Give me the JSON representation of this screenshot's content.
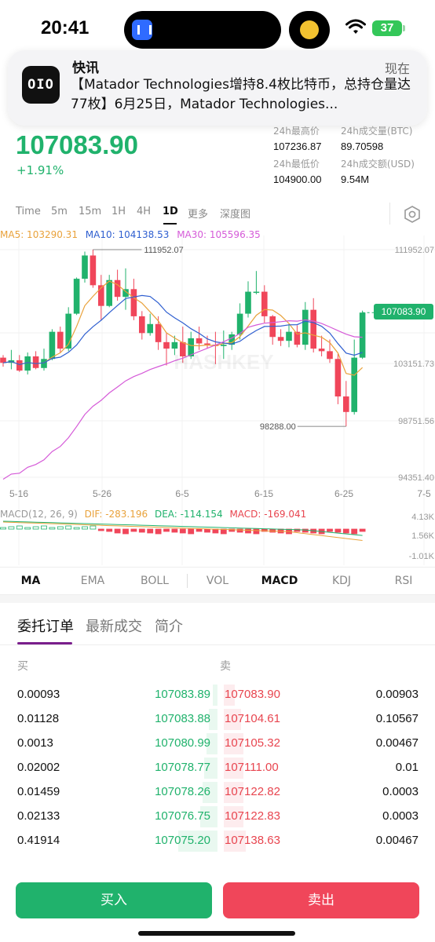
{
  "status": {
    "time": "20:41",
    "battery": "37"
  },
  "notification": {
    "app": "快讯",
    "icon_text": "OIO",
    "time": "现在",
    "body": "【Matador Technologies增持8.4枚比特币，总持仓量达77枚】6月25日，Matador Technologies..."
  },
  "ticker": {
    "price": "107083.90",
    "change": "+1.91%",
    "high_label": "24h最高价",
    "high": "107236.87",
    "low_label": "24h最低价",
    "low": "104900.00",
    "vol_label": "24h成交量(BTC)",
    "vol": "89.70598",
    "turnover_label": "24h成交额(USD)",
    "turnover": "9.54M"
  },
  "timeframes": [
    "Time",
    "5m",
    "15m",
    "1H",
    "4H",
    "1D",
    "更多",
    "深度图"
  ],
  "active_timeframe": "1D",
  "ma_legend": {
    "ma5": "MA5: 103290.31",
    "ma10": "MA10: 104138.53",
    "ma30": "MA30: 105596.35"
  },
  "macd_legend": {
    "params": "MACD(12, 26, 9)",
    "dif": "DIF: -283.196",
    "dea": "DEA: -114.154",
    "macd": "MACD: -169.041"
  },
  "colors": {
    "up": "#20b26c",
    "down": "#f0465a",
    "ma5": "#e9a23b",
    "ma10": "#2f5fd0",
    "ma30": "#d55ad8"
  },
  "chart_data": {
    "type": "candlestick",
    "y_axis_labels": [
      "111952.07",
      "103151.73",
      "98751.56",
      "94351.40"
    ],
    "x_axis_labels": [
      "5-16",
      "5-26",
      "6-5",
      "6-15",
      "6-25",
      "7-5"
    ],
    "last_price": "107083.90",
    "max_annotation": "111952.07",
    "min_annotation": "98288.00",
    "macd_axis_labels": [
      "4.13K",
      "1.56K",
      "-1.01K"
    ],
    "ylim": [
      94351.4,
      111952.07
    ],
    "candles": [
      [
        103600,
        103800,
        102900,
        103200
      ],
      [
        103200,
        104200,
        102700,
        103400
      ],
      [
        103400,
        103800,
        102500,
        102600
      ],
      [
        102600,
        104000,
        102300,
        103700
      ],
      [
        103700,
        104100,
        102700,
        102800
      ],
      [
        102800,
        104300,
        102600,
        103500
      ],
      [
        103500,
        105800,
        103400,
        105600
      ],
      [
        105600,
        106000,
        104000,
        104300
      ],
      [
        104300,
        107500,
        104100,
        107000
      ],
      [
        107000,
        109800,
        106900,
        109700
      ],
      [
        109700,
        111800,
        109400,
        111500
      ],
      [
        111500,
        111952,
        109000,
        109200
      ],
      [
        109200,
        110000,
        106500,
        107600
      ],
      [
        107600,
        110000,
        107500,
        109600
      ],
      [
        109600,
        110400,
        108000,
        108300
      ],
      [
        108300,
        110500,
        107300,
        108900
      ],
      [
        108900,
        109700,
        106500,
        106800
      ],
      [
        106800,
        107200,
        105000,
        105500
      ],
      [
        105500,
        107000,
        105300,
        106200
      ],
      [
        106200,
        106800,
        104200,
        104800
      ],
      [
        104800,
        105500,
        103000,
        104300
      ],
      [
        104300,
        105300,
        103800,
        104800
      ],
      [
        104800,
        106000,
        103200,
        103700
      ],
      [
        103700,
        105600,
        103500,
        105100
      ],
      [
        105100,
        106000,
        104200,
        104700
      ],
      [
        104700,
        105300,
        104300,
        104600
      ],
      [
        104600,
        105600,
        103100,
        104500
      ],
      [
        104500,
        105700,
        103500,
        104600
      ],
      [
        104600,
        105600,
        104200,
        105400
      ],
      [
        105400,
        107800,
        105000,
        107000
      ],
      [
        107000,
        109500,
        106700,
        108700
      ],
      [
        108700,
        110300,
        108500,
        108700
      ],
      [
        108700,
        109200,
        106300,
        106800
      ],
      [
        106800,
        106900,
        104600,
        105200
      ],
      [
        105200,
        105800,
        104500,
        104900
      ],
      [
        104900,
        106200,
        104400,
        105600
      ],
      [
        105600,
        106100,
        104400,
        104600
      ],
      [
        104600,
        107900,
        104200,
        107300
      ],
      [
        107300,
        108200,
        104000,
        104300
      ],
      [
        104300,
        105300,
        103700,
        104100
      ],
      [
        104100,
        105000,
        103200,
        103500
      ],
      [
        103500,
        103900,
        100000,
        100600
      ],
      [
        100600,
        101800,
        98288,
        99400
      ],
      [
        99400,
        105000,
        99200,
        103600
      ],
      [
        103600,
        107237,
        103500,
        107084
      ]
    ]
  },
  "indicators": [
    "MA",
    "EMA",
    "BOLL",
    "VOL",
    "MACD",
    "KDJ",
    "RSI"
  ],
  "active_main_indicator": "MA",
  "active_sub_indicator": "MACD",
  "orderbook_tabs": [
    "委托订单",
    "最新成交",
    "简介"
  ],
  "orderbook": {
    "bid_header": "买",
    "ask_header": "卖",
    "rows": [
      {
        "bid_qty": "0.00093",
        "bid_price": "107083.89",
        "ask_price": "107083.90",
        "ask_qty": "0.00903",
        "bid_depth": 0.02,
        "ask_depth": 0.05
      },
      {
        "bid_qty": "0.01128",
        "bid_price": "107083.88",
        "ask_price": "107104.61",
        "ask_qty": "0.10567",
        "bid_depth": 0.04,
        "ask_depth": 0.08
      },
      {
        "bid_qty": "0.0013",
        "bid_price": "107080.99",
        "ask_price": "107105.32",
        "ask_qty": "0.00467",
        "bid_depth": 0.05,
        "ask_depth": 0.09
      },
      {
        "bid_qty": "0.02002",
        "bid_price": "107078.77",
        "ask_price": "107111.00",
        "ask_qty": "0.01",
        "bid_depth": 0.06,
        "ask_depth": 0.09
      },
      {
        "bid_qty": "0.01459",
        "bid_price": "107078.26",
        "ask_price": "107122.82",
        "ask_qty": "0.0003",
        "bid_depth": 0.07,
        "ask_depth": 0.09
      },
      {
        "bid_qty": "0.02133",
        "bid_price": "107076.75",
        "ask_price": "107122.83",
        "ask_qty": "0.0003",
        "bid_depth": 0.08,
        "ask_depth": 0.09
      },
      {
        "bid_qty": "0.41914",
        "bid_price": "107075.20",
        "ask_price": "107138.63",
        "ask_qty": "0.00467",
        "bid_depth": 0.18,
        "ask_depth": 0.1
      }
    ]
  },
  "buttons": {
    "buy": "买入",
    "sell": "卖出"
  }
}
